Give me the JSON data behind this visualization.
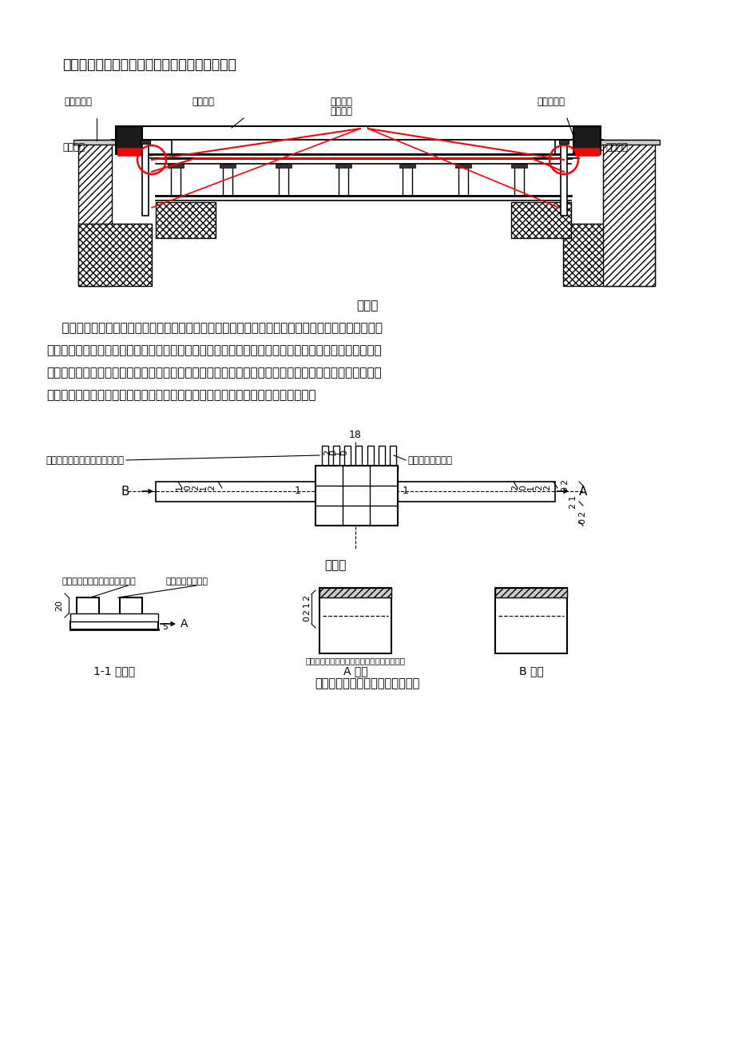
{
  "title": "方案三：利用塑料垫块方式固定混凝土翻边侧模",
  "section_label1": "剖面图",
  "section_label2": "平面图",
  "section_label3": "固定混凝土翻边侧模塑料垫块图示",
  "label_11_section": "1-1 剖面图",
  "label_A_view": "A 视面",
  "label_B_view": "B 视图",
  "para_line1": "    塑料垫块方式固定混凝土翻边侧模施工方法中，根据工程实际情况确定其塑料垫块规格尺寸，采用注",
  "para_line2": "塑工艺进行生产，在垂直于混凝土翻边的上排板筋上用扎丝固定垫块，利用垫块本身上部设有的凹槽固定",
  "para_line3": "翻边侧模底脚，确保混凝土翻边尺寸和平面位置的正确。垫块本身采用扎丝固定在楼板的上排钢筋上，不",
  "para_line4": "贯穿于整个构件，不会产生贯通构件的渗漏水通道，确保构件达到结构自防水要求。",
  "lbl_hunL": "混凝土翻边",
  "lbl_fanbian": "翻边侧模",
  "lbl_guding": "固定模板",
  "lbl_suliao": "塑料垫块",
  "lbl_hunR": "混凝土翻边",
  "lbl_zhasiL": "扎丝绑接",
  "lbl_zhasiR": "扎丝绑接",
  "lbl_yuanhu": "圆弧凹槽，用于放置钢筋及绑扎",
  "lbl_aocao_plan": "凹槽，用于放模板",
  "lbl_yuanhu2": "圆弧凹槽，用于放置钢筋及绑扎",
  "lbl_aocao2": "凹槽，用于放模板",
  "lbl_neihuo": "内弧面做点状突起或螺纹，增大与钢筋的摩擦",
  "bg_color": "#ffffff"
}
